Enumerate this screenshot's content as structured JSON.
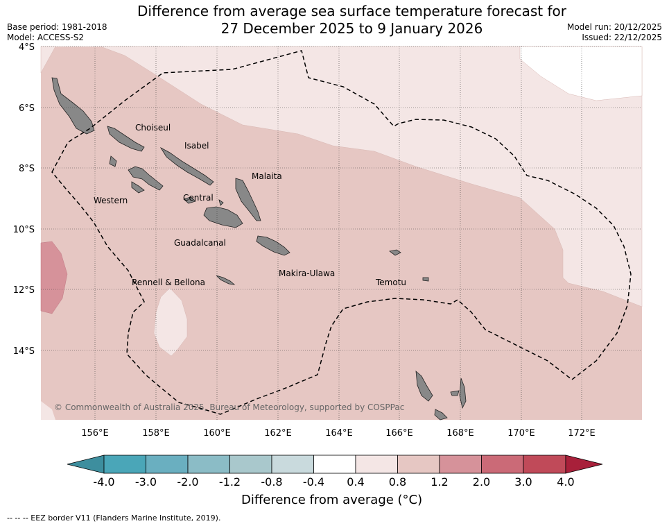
{
  "title": {
    "line1": "Difference from average sea surface temperature forecast for",
    "line2": "27 December 2025 to 9 January 2026"
  },
  "meta_left": {
    "base_period": "Base period: 1981-2018",
    "model": "Model: ACCESS-S2"
  },
  "meta_right": {
    "model_run": "Model run: 20/12/2025",
    "issued": "Issued: 22/12/2025"
  },
  "map": {
    "lat_labels": [
      "4°S",
      "6°S",
      "8°S",
      "10°S",
      "12°S",
      "14°S"
    ],
    "lon_labels": [
      "156°E",
      "158°E",
      "160°E",
      "162°E",
      "164°E",
      "166°E",
      "168°E",
      "170°E",
      "172°E"
    ],
    "places": [
      "Choiseul",
      "Isabel",
      "Malaita",
      "Western",
      "Central",
      "Guadalcanal",
      "Rennell & Bellona",
      "Makira-Ulawa",
      "Temotu"
    ],
    "copyright": "© Commonwealth of Australia 2025, Bureau of Meteorology, supported by COSPPac",
    "colors": {
      "anomaly_0_4_to_0_8": "#f4e6e5",
      "anomaly_0_8_to_1_2": "#e6c7c3",
      "anomaly_1_2_to_2_0": "#d6929a",
      "land": "#888888",
      "eez_border": "#000000"
    }
  },
  "colorbar": {
    "ticks": [
      "-4.0",
      "-3.0",
      "-2.0",
      "-1.2",
      "-0.8",
      "-0.4",
      "0.4",
      "0.8",
      "1.2",
      "2.0",
      "3.0",
      "4.0"
    ],
    "colors": [
      "#3d8e9e",
      "#4aa6b8",
      "#6aafc0",
      "#8bbcc6",
      "#a9c8cc",
      "#c9dadd",
      "#ffffff",
      "#f4e6e5",
      "#e6c7c3",
      "#d6929a",
      "#cb6a77",
      "#c04a59",
      "#a8203a"
    ],
    "label": "Difference from average (°C)"
  },
  "footnote": "-- -- -- EEZ border V11 (Flanders Marine Institute, 2019)."
}
